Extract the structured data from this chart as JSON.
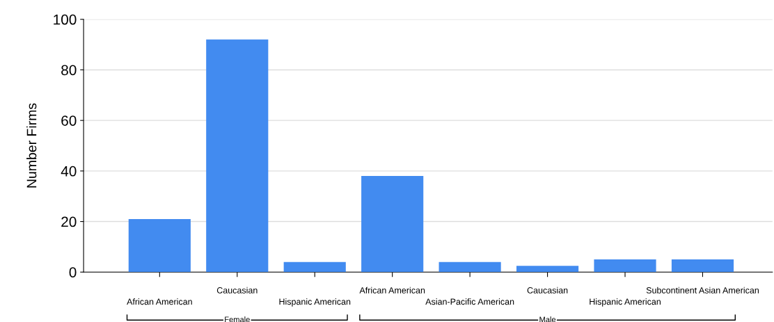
{
  "chart_data": {
    "type": "bar",
    "ylabel": "Number Firms",
    "categories": [
      "African American",
      "Caucasian",
      "Hispanic American",
      "African American",
      "Asian-Pacific American",
      "Caucasian",
      "Hispanic American",
      "Subcontinent Asian American"
    ],
    "values": [
      21,
      92,
      4,
      38,
      4,
      2.5,
      5,
      5
    ],
    "color": "#428bf0",
    "ylim": [
      0,
      100
    ],
    "yticks": [
      0,
      20,
      40,
      60,
      80,
      100
    ],
    "grid": "y",
    "annotations": [
      "Female",
      "Male"
    ]
  }
}
